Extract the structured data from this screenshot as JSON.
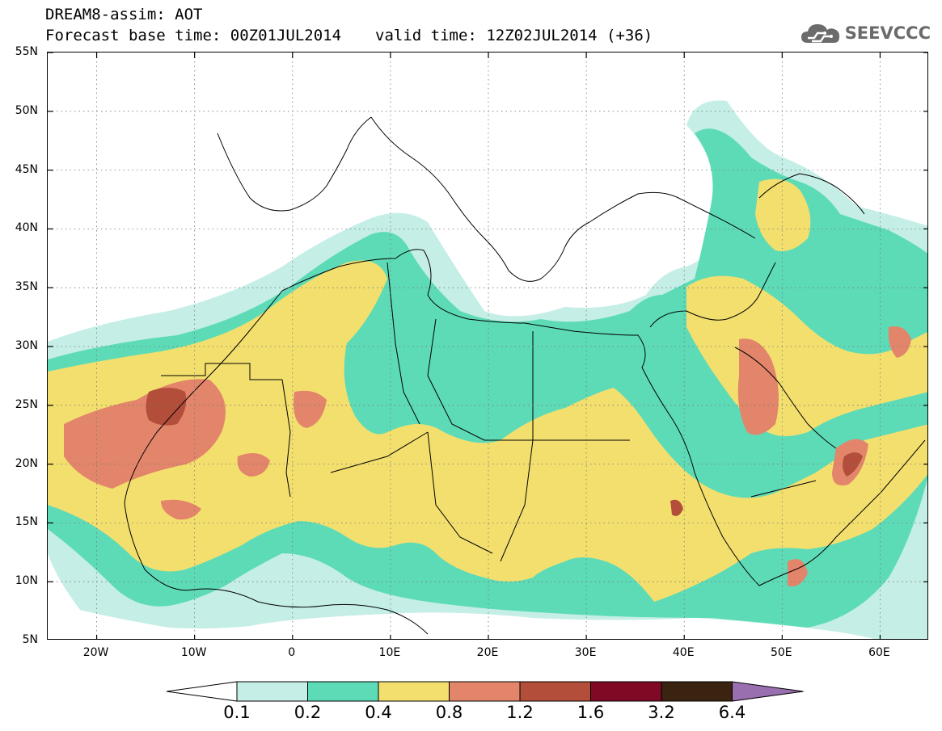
{
  "header": {
    "title_line1": "DREAM8-assim: AOT",
    "base_time": "Forecast base time: 00Z01JUL2014",
    "valid_time": "valid time: 12Z02JUL2014 (+36)",
    "logo_text": "SEEVCCC",
    "logo_icon": "cloud-icon"
  },
  "map": {
    "lat_range": [
      5,
      55
    ],
    "lon_range": [
      -25,
      65
    ],
    "lat_labels": [
      "55N",
      "50N",
      "45N",
      "40N",
      "35N",
      "30N",
      "25N",
      "20N",
      "15N",
      "10N",
      "5N"
    ],
    "lat_values": [
      55,
      50,
      45,
      40,
      35,
      30,
      25,
      20,
      15,
      10,
      5
    ],
    "lon_labels": [
      "20W",
      "10W",
      "0",
      "10E",
      "20E",
      "30E",
      "40E",
      "50E",
      "60E"
    ],
    "lon_values": [
      -20,
      -10,
      0,
      10,
      20,
      30,
      40,
      50,
      60
    ],
    "gridlines": "dotted"
  },
  "colorbar": {
    "levels": [
      "0.1",
      "0.2",
      "0.4",
      "0.8",
      "1.2",
      "1.6",
      "3.2",
      "6.4"
    ],
    "colors": [
      "#ffffff",
      "#c4eee6",
      "#5ddbb7",
      "#f3df6e",
      "#e2856a",
      "#b24e3a",
      "#800a25",
      "#3a2310",
      "#9a6fb0"
    ]
  }
}
